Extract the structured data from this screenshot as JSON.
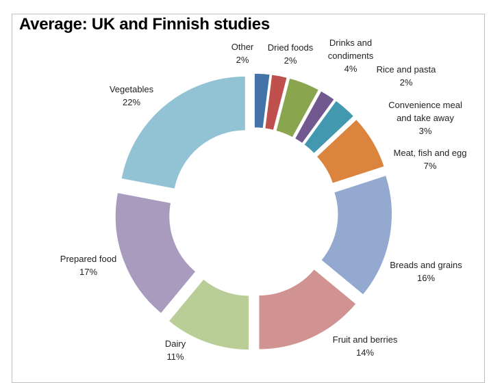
{
  "chart_data": {
    "type": "donut",
    "title": "Average: UK and Finnish studies",
    "categories": [
      "Other",
      "Dried foods",
      "Drinks and condiments",
      "Rice and pasta",
      "Convenience meal and take away",
      "Meat, fish and egg",
      "Breads and grains",
      "Fruit and berries",
      "Dairy",
      "Prepared food",
      "Vegetables"
    ],
    "values": [
      2,
      2,
      4,
      2,
      3,
      7,
      16,
      14,
      11,
      17,
      22
    ],
    "value_labels": [
      "2%",
      "2%",
      "4%",
      "2%",
      "3%",
      "7%",
      "16%",
      "14%",
      "11%",
      "17%",
      "22%"
    ],
    "colors": [
      "#4572a7",
      "#c0504d",
      "#89a54e",
      "#71588f",
      "#4198af",
      "#db843d",
      "#93a9cf",
      "#d19392",
      "#b9cd96",
      "#a99bbd",
      "#92c3d4"
    ]
  }
}
